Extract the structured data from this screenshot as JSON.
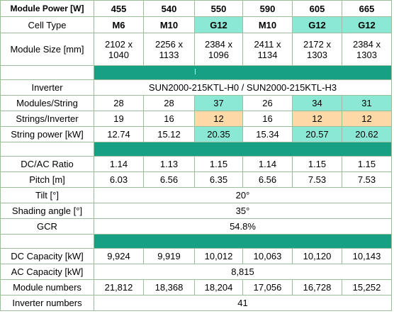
{
  "colors": {
    "g12_highlight": "#8be8d4",
    "orange_highlight": "#fcd9a6",
    "band": "#17a084",
    "border": "#9bbf9b"
  },
  "header": {
    "label": "Module Power [W]",
    "values": [
      "455",
      "540",
      "550",
      "590",
      "605",
      "665"
    ]
  },
  "cell_type": {
    "label": "Cell Type",
    "values": [
      "M6",
      "M10",
      "G12",
      "M10",
      "G12",
      "G12"
    ]
  },
  "module_size": {
    "label": "Module Size [mm]",
    "values": [
      [
        "2102 x",
        "1040"
      ],
      [
        "2256 x",
        "1133"
      ],
      [
        "2384 x",
        "1096"
      ],
      [
        "2411 x",
        "1134"
      ],
      [
        "2172 x",
        "1303"
      ],
      [
        "2384 x",
        "1303"
      ]
    ]
  },
  "inverter": {
    "label": "Inverter",
    "value": "SUN2000-215KTL-H0 / SUN2000-215KTL-H3"
  },
  "modules_per_string": {
    "label": "Modules/String",
    "values": [
      "28",
      "28",
      "37",
      "26",
      "34",
      "31"
    ]
  },
  "strings_per_inverter": {
    "label": "Strings/Inverter",
    "values": [
      "19",
      "16",
      "12",
      "16",
      "12",
      "12"
    ]
  },
  "string_power": {
    "label": "String power [kW]",
    "values": [
      "12.74",
      "15.12",
      "20.35",
      "15.34",
      "20.57",
      "20.62"
    ]
  },
  "dc_ac_ratio": {
    "label": "DC/AC Ratio",
    "values": [
      "1.14",
      "1.13",
      "1.15",
      "1.14",
      "1.15",
      "1.15"
    ]
  },
  "pitch": {
    "label": "Pitch [m]",
    "values": [
      "6.03",
      "6.56",
      "6.35",
      "6.56",
      "7.53",
      "7.53"
    ]
  },
  "tilt": {
    "label": "Tilt [°]",
    "value": "20°"
  },
  "shading_angle": {
    "label": "Shading angle [°]",
    "value": "35°"
  },
  "gcr": {
    "label": "GCR",
    "value": "54.8%"
  },
  "dc_capacity": {
    "label": "DC Capacity [kW]",
    "values": [
      "9,924",
      "9,919",
      "10,012",
      "10,063",
      "10,120",
      "10,143"
    ]
  },
  "ac_capacity": {
    "label": "AC Capacity [kW]",
    "value": "8,815"
  },
  "module_numbers": {
    "label": "Module numbers",
    "values": [
      "21,812",
      "18,368",
      "18,204",
      "17,056",
      "16,728",
      "15,252"
    ]
  },
  "inverter_numbers": {
    "label": "Inverter numbers",
    "value": "41"
  }
}
